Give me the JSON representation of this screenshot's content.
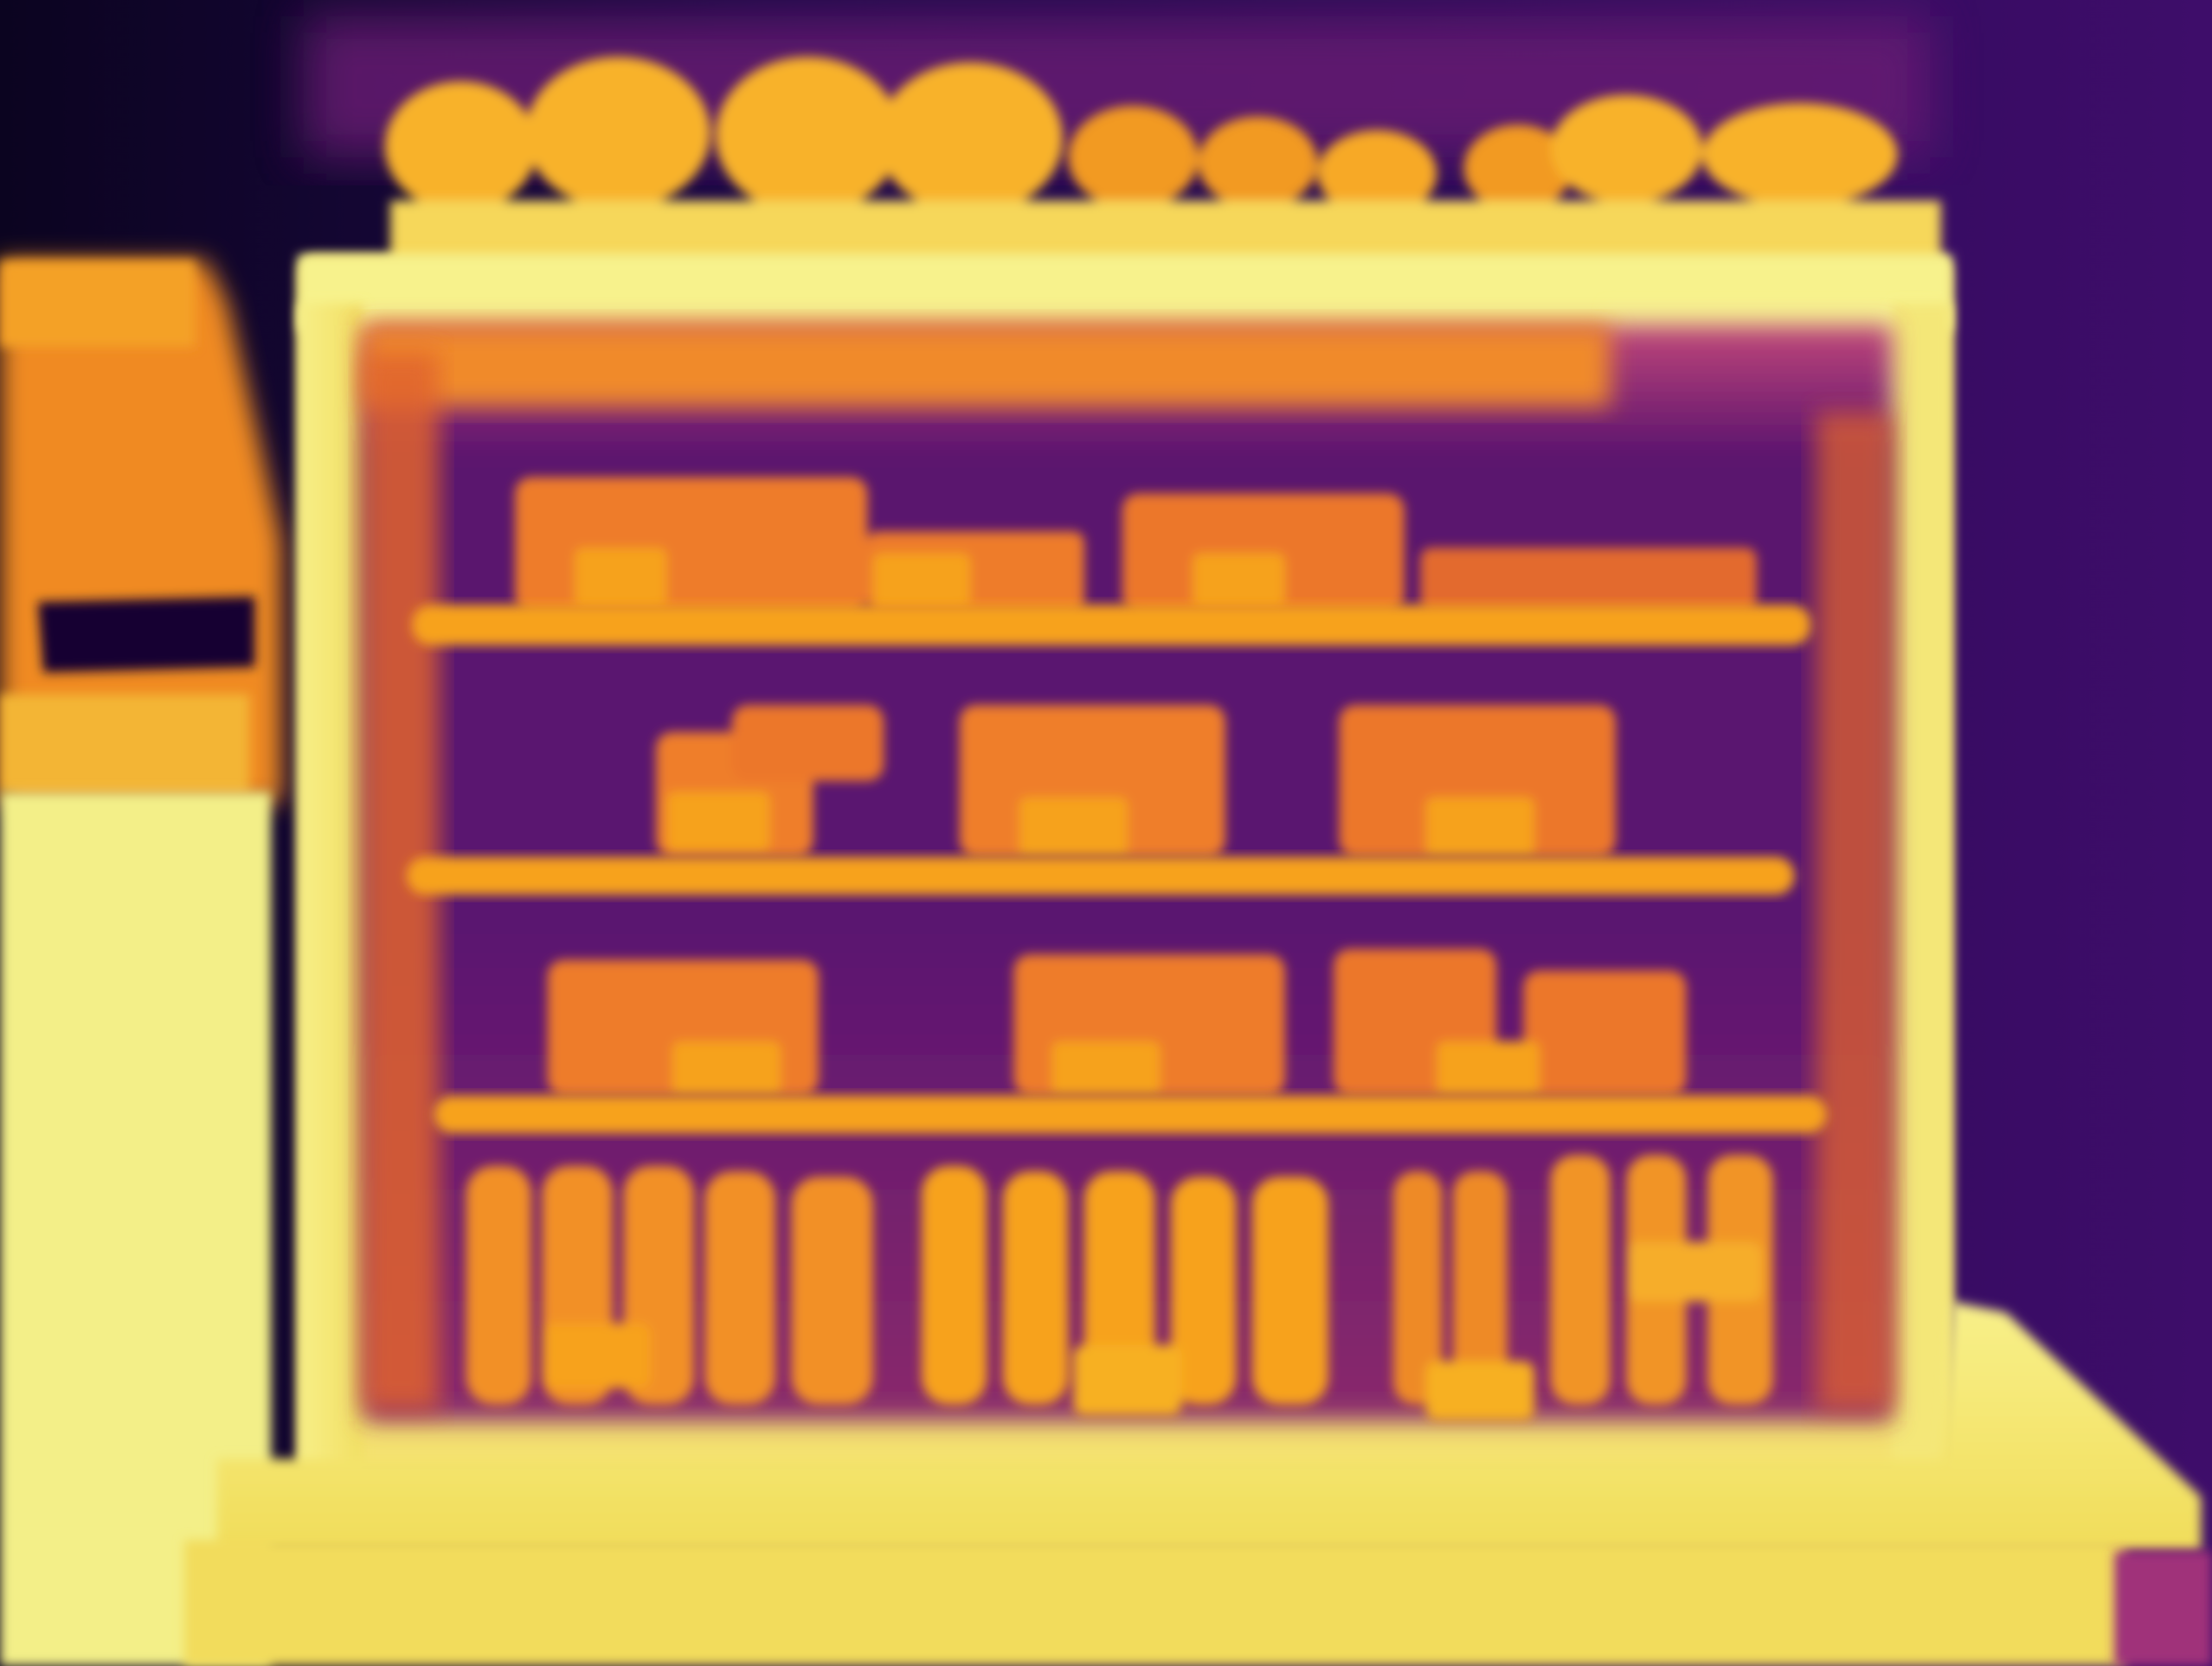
{
  "scene": {
    "palette": {
      "near": "#f4f58c",
      "near_mid": "#f7d64a",
      "mid_warm": "#f6a21c",
      "mid": "#ec7d2a",
      "mid_far": "#c8503f",
      "far": "#7a1f7a",
      "farther": "#4a0f6d",
      "farthest": "#10062a"
    }
  }
}
